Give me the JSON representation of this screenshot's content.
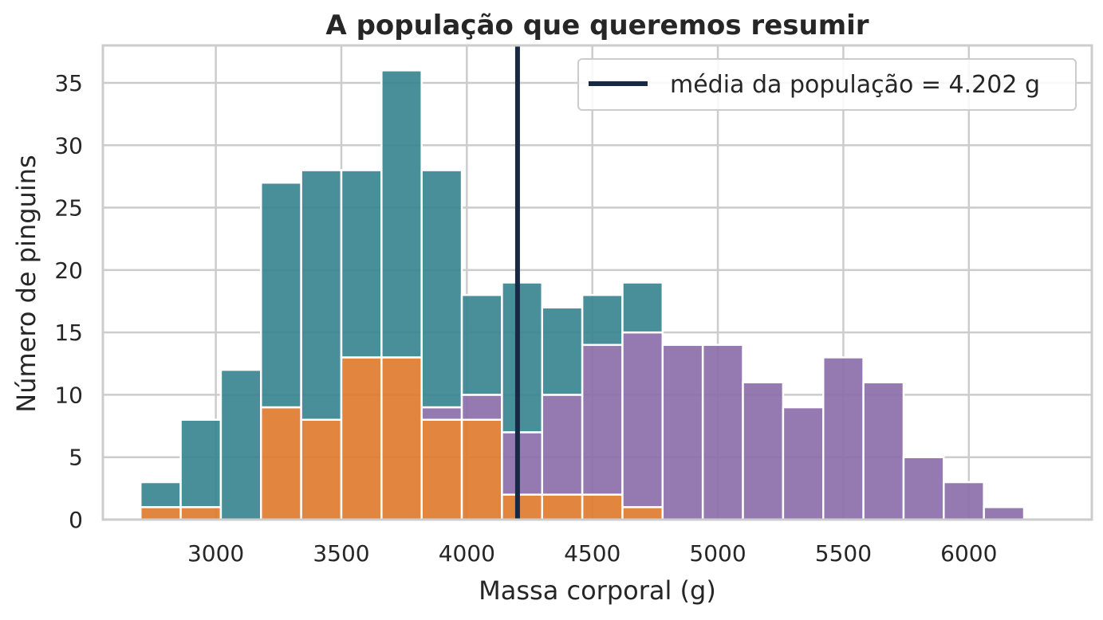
{
  "chart_data": {
    "type": "bar",
    "title": "A população que queremos resumir",
    "xlabel": "Massa corporal (g)",
    "ylabel": "Número de pinguins",
    "xlim": [
      2550,
      6490
    ],
    "ylim": [
      0,
      38
    ],
    "x_ticks": [
      3000,
      3500,
      4000,
      4500,
      5000,
      5500,
      6000
    ],
    "x_tick_labels": [
      "3000",
      "3500",
      "4000",
      "4500",
      "5000",
      "5500",
      "6000"
    ],
    "y_ticks": [
      0,
      5,
      10,
      15,
      20,
      25,
      30,
      35
    ],
    "y_tick_labels": [
      "0",
      "5",
      "10",
      "15",
      "20",
      "25",
      "30",
      "35"
    ],
    "grid": true,
    "stacked": true,
    "bin_edges": [
      2700,
      2860,
      3020,
      3180,
      3340,
      3500,
      3660,
      3820,
      3980,
      4140,
      4300,
      4460,
      4620,
      4780,
      4940,
      5100,
      5260,
      5420,
      5580,
      5740,
      5900,
      6060,
      6220
    ],
    "series": [
      {
        "color": "#e07b2e",
        "values": [
          1,
          1,
          0,
          9,
          8,
          13,
          13,
          8,
          8,
          2,
          2,
          2,
          1,
          0,
          0,
          0,
          0,
          0,
          0,
          0,
          0,
          0
        ]
      },
      {
        "color": "#8c6fab",
        "values": [
          0,
          0,
          0,
          0,
          0,
          0,
          0,
          1,
          2,
          5,
          8,
          12,
          14,
          14,
          14,
          11,
          9,
          13,
          11,
          5,
          3,
          1
        ]
      },
      {
        "color": "#3a8690",
        "values": [
          2,
          7,
          12,
          18,
          20,
          15,
          23,
          19,
          8,
          12,
          7,
          4,
          4,
          0,
          0,
          0,
          0,
          0,
          0,
          0,
          0,
          0
        ]
      }
    ],
    "reference_line": {
      "x": 4202,
      "color": "#172a45",
      "label": "média da população = 4.202 g"
    },
    "legend_position": "top-right"
  }
}
